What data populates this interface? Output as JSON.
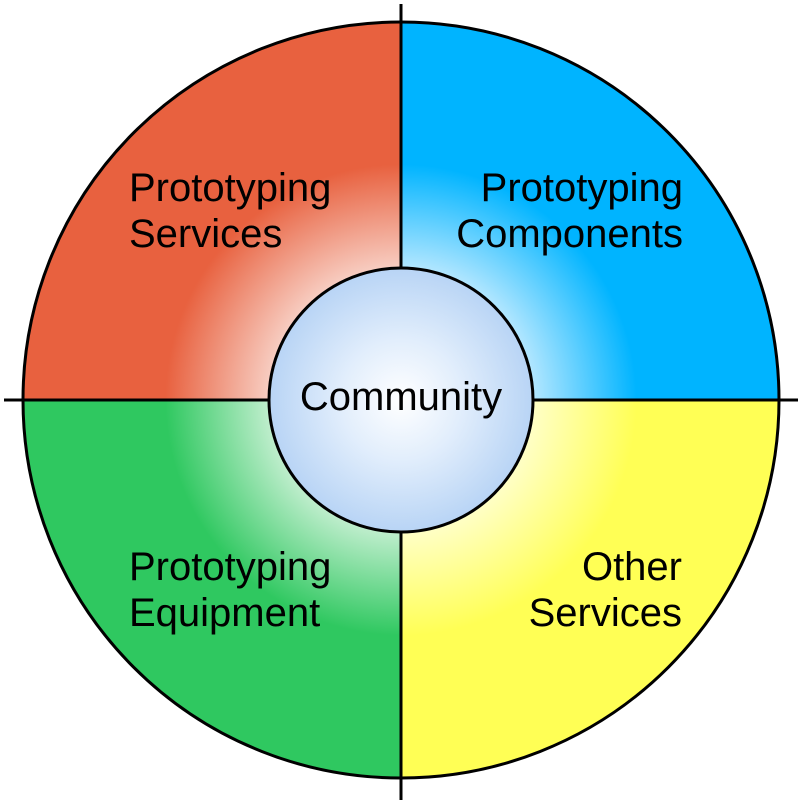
{
  "diagram": {
    "center": {
      "label": "Community",
      "color": "#b8d4f5"
    },
    "quadrants": [
      {
        "id": "top-left",
        "line1": "Prototyping",
        "line2": "Services",
        "color": "#e8613f"
      },
      {
        "id": "top-right",
        "line1": "Prototyping",
        "line2": "Components",
        "color": "#00b4ff"
      },
      {
        "id": "bottom-left",
        "line1": "Prototyping",
        "line2": "Equipment",
        "color": "#2fc860"
      },
      {
        "id": "bottom-right",
        "line1": "Other",
        "line2": "Services",
        "color": "#ffff55"
      }
    ]
  }
}
